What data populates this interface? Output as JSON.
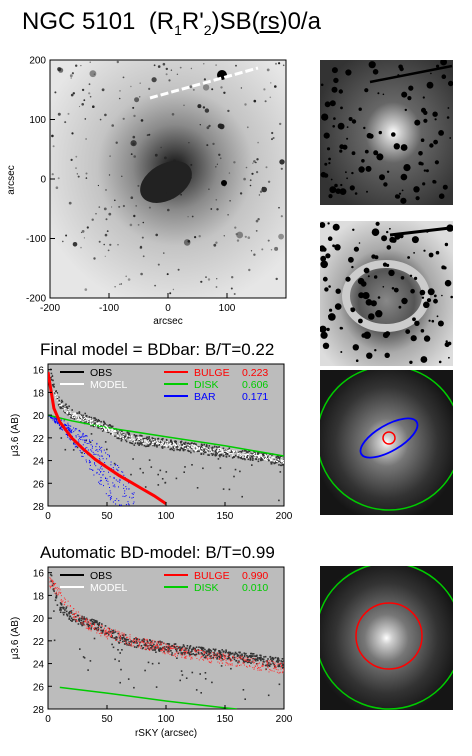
{
  "figure": {
    "title": "NGC 5101  (R₁R'₂)SB(rs)0/a"
  },
  "image_panel": {
    "xlabel": "arcsec",
    "ylabel": "arcsec",
    "xticks": [
      "-200",
      "-100",
      "0",
      "100"
    ],
    "yticks": [
      "200",
      "100",
      "0",
      "-100",
      "-200"
    ]
  },
  "thumbnails": [
    "galaxy-image",
    "residual-image",
    "bdbar-model-overlay",
    "bd-model-overlay"
  ],
  "panel2": {
    "title": "Final model = BDbar: B/T=0.22"
  },
  "panel3": {
    "title": "Automatic BD-model: B/T=0.99"
  },
  "chart_data": [
    {
      "type": "scatter",
      "title": "Final model = BDbar: B/T=0.22",
      "xlabel": "",
      "ylabel": "μ3.6 (AB)",
      "xlim": [
        0,
        200
      ],
      "ylim": [
        28,
        15.5
      ],
      "xticks": [
        "0",
        "50",
        "100",
        "150",
        "200"
      ],
      "yticks": [
        "16",
        "18",
        "20",
        "22",
        "24",
        "26",
        "28"
      ],
      "legend": [
        {
          "label": "OBS",
          "value": "",
          "color": "#000000"
        },
        {
          "label": "MODEL",
          "value": "",
          "color": "#ffffff"
        },
        {
          "label": "BULGE",
          "value": "0.223",
          "color": "#ff0000"
        },
        {
          "label": "DISK",
          "value": "0.606",
          "color": "#00cc00"
        },
        {
          "label": "BAR",
          "value": "0.171",
          "color": "#0000ff"
        }
      ],
      "series": [
        {
          "name": "OBS",
          "points": [
            [
              2,
              16.3
            ],
            [
              5,
              17.8
            ],
            [
              10,
              19.0
            ],
            [
              20,
              19.8
            ],
            [
              30,
              20.2
            ],
            [
              40,
              20.6
            ],
            [
              50,
              21.1
            ],
            [
              60,
              21.7
            ],
            [
              70,
              22.0
            ],
            [
              80,
              22.2
            ],
            [
              100,
              22.5
            ],
            [
              120,
              22.8
            ],
            [
              150,
              23.2
            ],
            [
              180,
              23.6
            ],
            [
              200,
              24.0
            ]
          ]
        },
        {
          "name": "MODEL",
          "points": [
            [
              2,
              16.5
            ],
            [
              5,
              17.9
            ],
            [
              10,
              19.1
            ],
            [
              20,
              19.9
            ],
            [
              30,
              20.3
            ],
            [
              40,
              20.7
            ],
            [
              50,
              21.2
            ],
            [
              60,
              21.7
            ],
            [
              70,
              22.0
            ],
            [
              80,
              22.2
            ],
            [
              100,
              22.5
            ],
            [
              120,
              22.8
            ],
            [
              150,
              23.2
            ],
            [
              180,
              23.6
            ],
            [
              200,
              24.0
            ]
          ]
        },
        {
          "name": "BULGE",
          "points": [
            [
              0,
              16.2
            ],
            [
              5,
              19.4
            ],
            [
              10,
              20.6
            ],
            [
              20,
              22.0
            ],
            [
              30,
              23.0
            ],
            [
              40,
              23.9
            ],
            [
              50,
              24.6
            ],
            [
              60,
              25.3
            ],
            [
              70,
              25.9
            ],
            [
              80,
              26.5
            ],
            [
              90,
              27.1
            ],
            [
              100,
              27.8
            ]
          ]
        },
        {
          "name": "DISK",
          "points": [
            [
              0,
              20.0
            ],
            [
              20,
              20.5
            ],
            [
              50,
              21.1
            ],
            [
              100,
              21.9
            ],
            [
              150,
              22.7
            ],
            [
              200,
              23.6
            ]
          ]
        },
        {
          "name": "BAR",
          "points": [
            [
              0,
              20.0
            ],
            [
              10,
              20.3
            ],
            [
              20,
              20.8
            ],
            [
              30,
              21.5
            ],
            [
              40,
              22.3
            ],
            [
              50,
              23.2
            ],
            [
              60,
              24.4
            ],
            [
              70,
              26.0
            ],
            [
              75,
              27.5
            ]
          ]
        }
      ]
    },
    {
      "type": "scatter",
      "title": "Automatic BD-model: B/T=0.99",
      "xlabel": "rSKY (arcsec)",
      "ylabel": "μ3.6 (AB)",
      "xlim": [
        0,
        200
      ],
      "ylim": [
        28,
        15.5
      ],
      "xticks": [
        "0",
        "50",
        "100",
        "150",
        "200"
      ],
      "yticks": [
        "16",
        "18",
        "20",
        "22",
        "24",
        "26",
        "28"
      ],
      "legend": [
        {
          "label": "OBS",
          "value": "",
          "color": "#000000"
        },
        {
          "label": "MODEL",
          "value": "",
          "color": "#ffffff"
        },
        {
          "label": "BULGE",
          "value": "0.990",
          "color": "#ff0000"
        },
        {
          "label": "DISK",
          "value": "0.010",
          "color": "#00cc00"
        }
      ],
      "series": [
        {
          "name": "OBS",
          "points": [
            [
              2,
              16.3
            ],
            [
              5,
              17.8
            ],
            [
              10,
              19.0
            ],
            [
              20,
              19.8
            ],
            [
              30,
              20.2
            ],
            [
              40,
              20.6
            ],
            [
              50,
              21.1
            ],
            [
              60,
              21.7
            ],
            [
              70,
              22.0
            ],
            [
              80,
              22.2
            ],
            [
              100,
              22.5
            ],
            [
              120,
              22.8
            ],
            [
              150,
              23.2
            ],
            [
              180,
              23.6
            ],
            [
              200,
              24.0
            ]
          ]
        },
        {
          "name": "BULGE",
          "points": [
            [
              2,
              16.8
            ],
            [
              10,
              18.0
            ],
            [
              20,
              19.4
            ],
            [
              30,
              20.3
            ],
            [
              50,
              21.3
            ],
            [
              75,
              22.1
            ],
            [
              100,
              22.7
            ],
            [
              125,
              23.2
            ],
            [
              150,
              23.6
            ],
            [
              175,
              24.0
            ],
            [
              200,
              24.4
            ]
          ]
        },
        {
          "name": "DISK",
          "points": [
            [
              10,
              26.1
            ],
            [
              50,
              26.6
            ],
            [
              100,
              27.3
            ],
            [
              150,
              27.9
            ],
            [
              160,
              28.0
            ]
          ]
        }
      ]
    }
  ]
}
